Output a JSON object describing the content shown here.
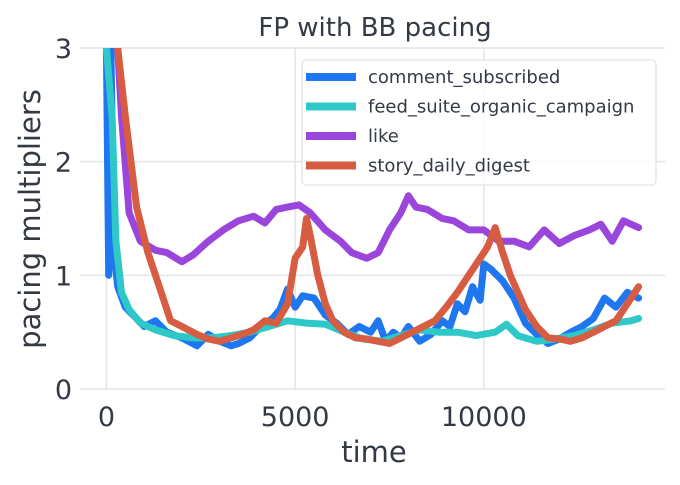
{
  "chart_data": {
    "type": "line",
    "title": "FP with BB pacing",
    "xlabel": "time",
    "ylabel": "pacing multipliers",
    "xlim": [
      -700,
      14800
    ],
    "ylim": [
      0,
      3
    ],
    "xticks": [
      0,
      5000,
      10000
    ],
    "xtick_labels": [
      "0",
      "5000",
      "10000"
    ],
    "yticks": [
      0,
      1,
      2,
      3
    ],
    "ytick_labels": [
      "0",
      "1",
      "2",
      "3"
    ],
    "grid": true,
    "legend_position": "top-right",
    "series": [
      {
        "name": "comment_subscribed",
        "color": "#1f77f0",
        "points": [
          [
            0,
            3.0
          ],
          [
            60,
            1.0
          ],
          [
            120,
            3.0
          ],
          [
            200,
            1.2
          ],
          [
            300,
            0.9
          ],
          [
            500,
            0.72
          ],
          [
            800,
            0.62
          ],
          [
            1000,
            0.55
          ],
          [
            1300,
            0.6
          ],
          [
            1600,
            0.5
          ],
          [
            2000,
            0.45
          ],
          [
            2400,
            0.38
          ],
          [
            2700,
            0.48
          ],
          [
            3000,
            0.42
          ],
          [
            3300,
            0.38
          ],
          [
            3500,
            0.4
          ],
          [
            3800,
            0.45
          ],
          [
            4000,
            0.52
          ],
          [
            4200,
            0.58
          ],
          [
            4400,
            0.62
          ],
          [
            4600,
            0.7
          ],
          [
            4800,
            0.88
          ],
          [
            5000,
            0.72
          ],
          [
            5200,
            0.82
          ],
          [
            5500,
            0.8
          ],
          [
            5800,
            0.65
          ],
          [
            6100,
            0.58
          ],
          [
            6400,
            0.48
          ],
          [
            6700,
            0.55
          ],
          [
            7000,
            0.5
          ],
          [
            7200,
            0.6
          ],
          [
            7400,
            0.42
          ],
          [
            7600,
            0.5
          ],
          [
            7800,
            0.45
          ],
          [
            8000,
            0.55
          ],
          [
            8300,
            0.42
          ],
          [
            8600,
            0.48
          ],
          [
            8900,
            0.6
          ],
          [
            9100,
            0.55
          ],
          [
            9300,
            0.75
          ],
          [
            9500,
            0.68
          ],
          [
            9700,
            0.9
          ],
          [
            9900,
            0.78
          ],
          [
            10000,
            1.1
          ],
          [
            10200,
            1.05
          ],
          [
            10500,
            0.95
          ],
          [
            10800,
            0.8
          ],
          [
            11100,
            0.58
          ],
          [
            11400,
            0.48
          ],
          [
            11700,
            0.4
          ],
          [
            12000,
            0.44
          ],
          [
            12300,
            0.5
          ],
          [
            12600,
            0.55
          ],
          [
            12900,
            0.62
          ],
          [
            13200,
            0.8
          ],
          [
            13500,
            0.72
          ],
          [
            13800,
            0.85
          ],
          [
            14100,
            0.8
          ]
        ]
      },
      {
        "name": "feed_suite_organic_campaign",
        "color": "#2ec8c8",
        "points": [
          [
            0,
            3.0
          ],
          [
            150,
            2.4
          ],
          [
            250,
            1.3
          ],
          [
            400,
            0.85
          ],
          [
            600,
            0.7
          ],
          [
            900,
            0.58
          ],
          [
            1300,
            0.52
          ],
          [
            1800,
            0.47
          ],
          [
            2300,
            0.45
          ],
          [
            2800,
            0.45
          ],
          [
            3300,
            0.47
          ],
          [
            3800,
            0.5
          ],
          [
            4300,
            0.55
          ],
          [
            4800,
            0.6
          ],
          [
            5300,
            0.58
          ],
          [
            5800,
            0.57
          ],
          [
            6300,
            0.5
          ],
          [
            6800,
            0.44
          ],
          [
            7300,
            0.42
          ],
          [
            7800,
            0.47
          ],
          [
            8300,
            0.52
          ],
          [
            8800,
            0.5
          ],
          [
            9300,
            0.5
          ],
          [
            9800,
            0.47
          ],
          [
            10300,
            0.5
          ],
          [
            10600,
            0.57
          ],
          [
            10900,
            0.47
          ],
          [
            11400,
            0.42
          ],
          [
            11900,
            0.44
          ],
          [
            12400,
            0.47
          ],
          [
            12900,
            0.52
          ],
          [
            13400,
            0.58
          ],
          [
            13900,
            0.6
          ],
          [
            14100,
            0.62
          ]
        ]
      },
      {
        "name": "like",
        "color": "#9a45dc",
        "points": [
          [
            300,
            3.0
          ],
          [
            400,
            2.4
          ],
          [
            600,
            1.55
          ],
          [
            900,
            1.3
          ],
          [
            1300,
            1.22
          ],
          [
            1600,
            1.2
          ],
          [
            2000,
            1.12
          ],
          [
            2300,
            1.18
          ],
          [
            2700,
            1.3
          ],
          [
            3100,
            1.4
          ],
          [
            3500,
            1.48
          ],
          [
            3900,
            1.52
          ],
          [
            4200,
            1.46
          ],
          [
            4500,
            1.58
          ],
          [
            4800,
            1.6
          ],
          [
            5100,
            1.62
          ],
          [
            5400,
            1.55
          ],
          [
            5800,
            1.4
          ],
          [
            6200,
            1.3
          ],
          [
            6500,
            1.2
          ],
          [
            6900,
            1.15
          ],
          [
            7200,
            1.2
          ],
          [
            7500,
            1.4
          ],
          [
            7800,
            1.55
          ],
          [
            8000,
            1.7
          ],
          [
            8200,
            1.6
          ],
          [
            8500,
            1.58
          ],
          [
            8900,
            1.5
          ],
          [
            9200,
            1.48
          ],
          [
            9600,
            1.4
          ],
          [
            10000,
            1.4
          ],
          [
            10400,
            1.3
          ],
          [
            10800,
            1.3
          ],
          [
            11200,
            1.25
          ],
          [
            11600,
            1.4
          ],
          [
            12000,
            1.28
          ],
          [
            12400,
            1.35
          ],
          [
            12800,
            1.4
          ],
          [
            13100,
            1.45
          ],
          [
            13400,
            1.3
          ],
          [
            13700,
            1.48
          ],
          [
            14100,
            1.42
          ]
        ]
      },
      {
        "name": "story_daily_digest",
        "color": "#d65c42",
        "points": [
          [
            300,
            3.0
          ],
          [
            500,
            2.4
          ],
          [
            800,
            1.6
          ],
          [
            1100,
            1.2
          ],
          [
            1400,
            0.9
          ],
          [
            1700,
            0.6
          ],
          [
            2000,
            0.55
          ],
          [
            2400,
            0.48
          ],
          [
            2700,
            0.44
          ],
          [
            3000,
            0.42
          ],
          [
            3300,
            0.45
          ],
          [
            3600,
            0.48
          ],
          [
            3900,
            0.52
          ],
          [
            4200,
            0.6
          ],
          [
            4500,
            0.58
          ],
          [
            4800,
            0.75
          ],
          [
            5000,
            1.15
          ],
          [
            5200,
            1.25
          ],
          [
            5300,
            1.5
          ],
          [
            5400,
            1.35
          ],
          [
            5600,
            1.0
          ],
          [
            5800,
            0.75
          ],
          [
            6000,
            0.6
          ],
          [
            6300,
            0.5
          ],
          [
            6600,
            0.45
          ],
          [
            6900,
            0.44
          ],
          [
            7200,
            0.42
          ],
          [
            7500,
            0.4
          ],
          [
            7800,
            0.45
          ],
          [
            8100,
            0.5
          ],
          [
            8400,
            0.55
          ],
          [
            8700,
            0.6
          ],
          [
            9000,
            0.72
          ],
          [
            9300,
            0.85
          ],
          [
            9600,
            1.0
          ],
          [
            9900,
            1.15
          ],
          [
            10100,
            1.25
          ],
          [
            10300,
            1.42
          ],
          [
            10500,
            1.2
          ],
          [
            10700,
            1.0
          ],
          [
            10900,
            0.85
          ],
          [
            11100,
            0.7
          ],
          [
            11400,
            0.55
          ],
          [
            11700,
            0.45
          ],
          [
            12000,
            0.44
          ],
          [
            12300,
            0.42
          ],
          [
            12600,
            0.45
          ],
          [
            12900,
            0.5
          ],
          [
            13200,
            0.55
          ],
          [
            13500,
            0.6
          ],
          [
            13800,
            0.75
          ],
          [
            14100,
            0.9
          ]
        ]
      }
    ]
  }
}
